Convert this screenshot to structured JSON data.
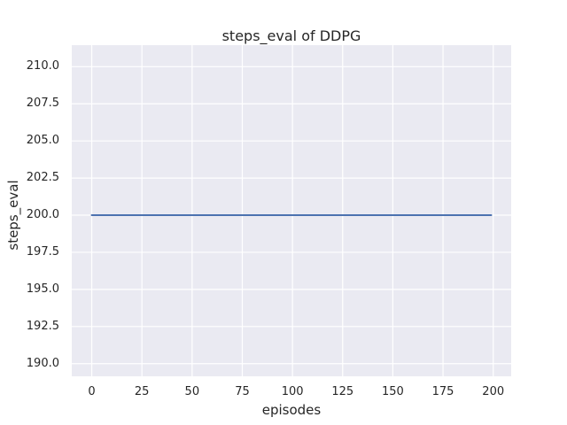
{
  "chart_data": {
    "type": "line",
    "title": "steps_eval of DDPG",
    "xlabel": "episodes",
    "ylabel": "steps_eval",
    "xlim": [
      -9.95,
      208.95
    ],
    "ylim": [
      189.15,
      211.45
    ],
    "grid": true,
    "legend": "none",
    "x_ticks": {
      "values": [
        0,
        25,
        50,
        75,
        100,
        125,
        150,
        175,
        200
      ],
      "labels": [
        "0",
        "25",
        "50",
        "75",
        "100",
        "125",
        "150",
        "175",
        "200"
      ]
    },
    "y_ticks": {
      "values": [
        210.0,
        207.5,
        205.0,
        202.5,
        200.0,
        197.5,
        195.0,
        192.5,
        190.0
      ],
      "labels": [
        "210.0",
        "207.5",
        "205.0",
        "202.5",
        "200.0",
        "197.5",
        "195.0",
        "192.5",
        "190.0"
      ]
    },
    "series": [
      {
        "name": "DDPG steps_eval",
        "x": [
          0,
          199
        ],
        "y": [
          200,
          200
        ],
        "color": "#4c72b0",
        "note": "constant value 200 for every episode 0-199"
      }
    ],
    "colors": {
      "figure_background": "#ffffff",
      "plot_background": "#eaeaf2",
      "grid": "#ffffff",
      "text": "#262626",
      "line": "#4c72b0"
    }
  }
}
